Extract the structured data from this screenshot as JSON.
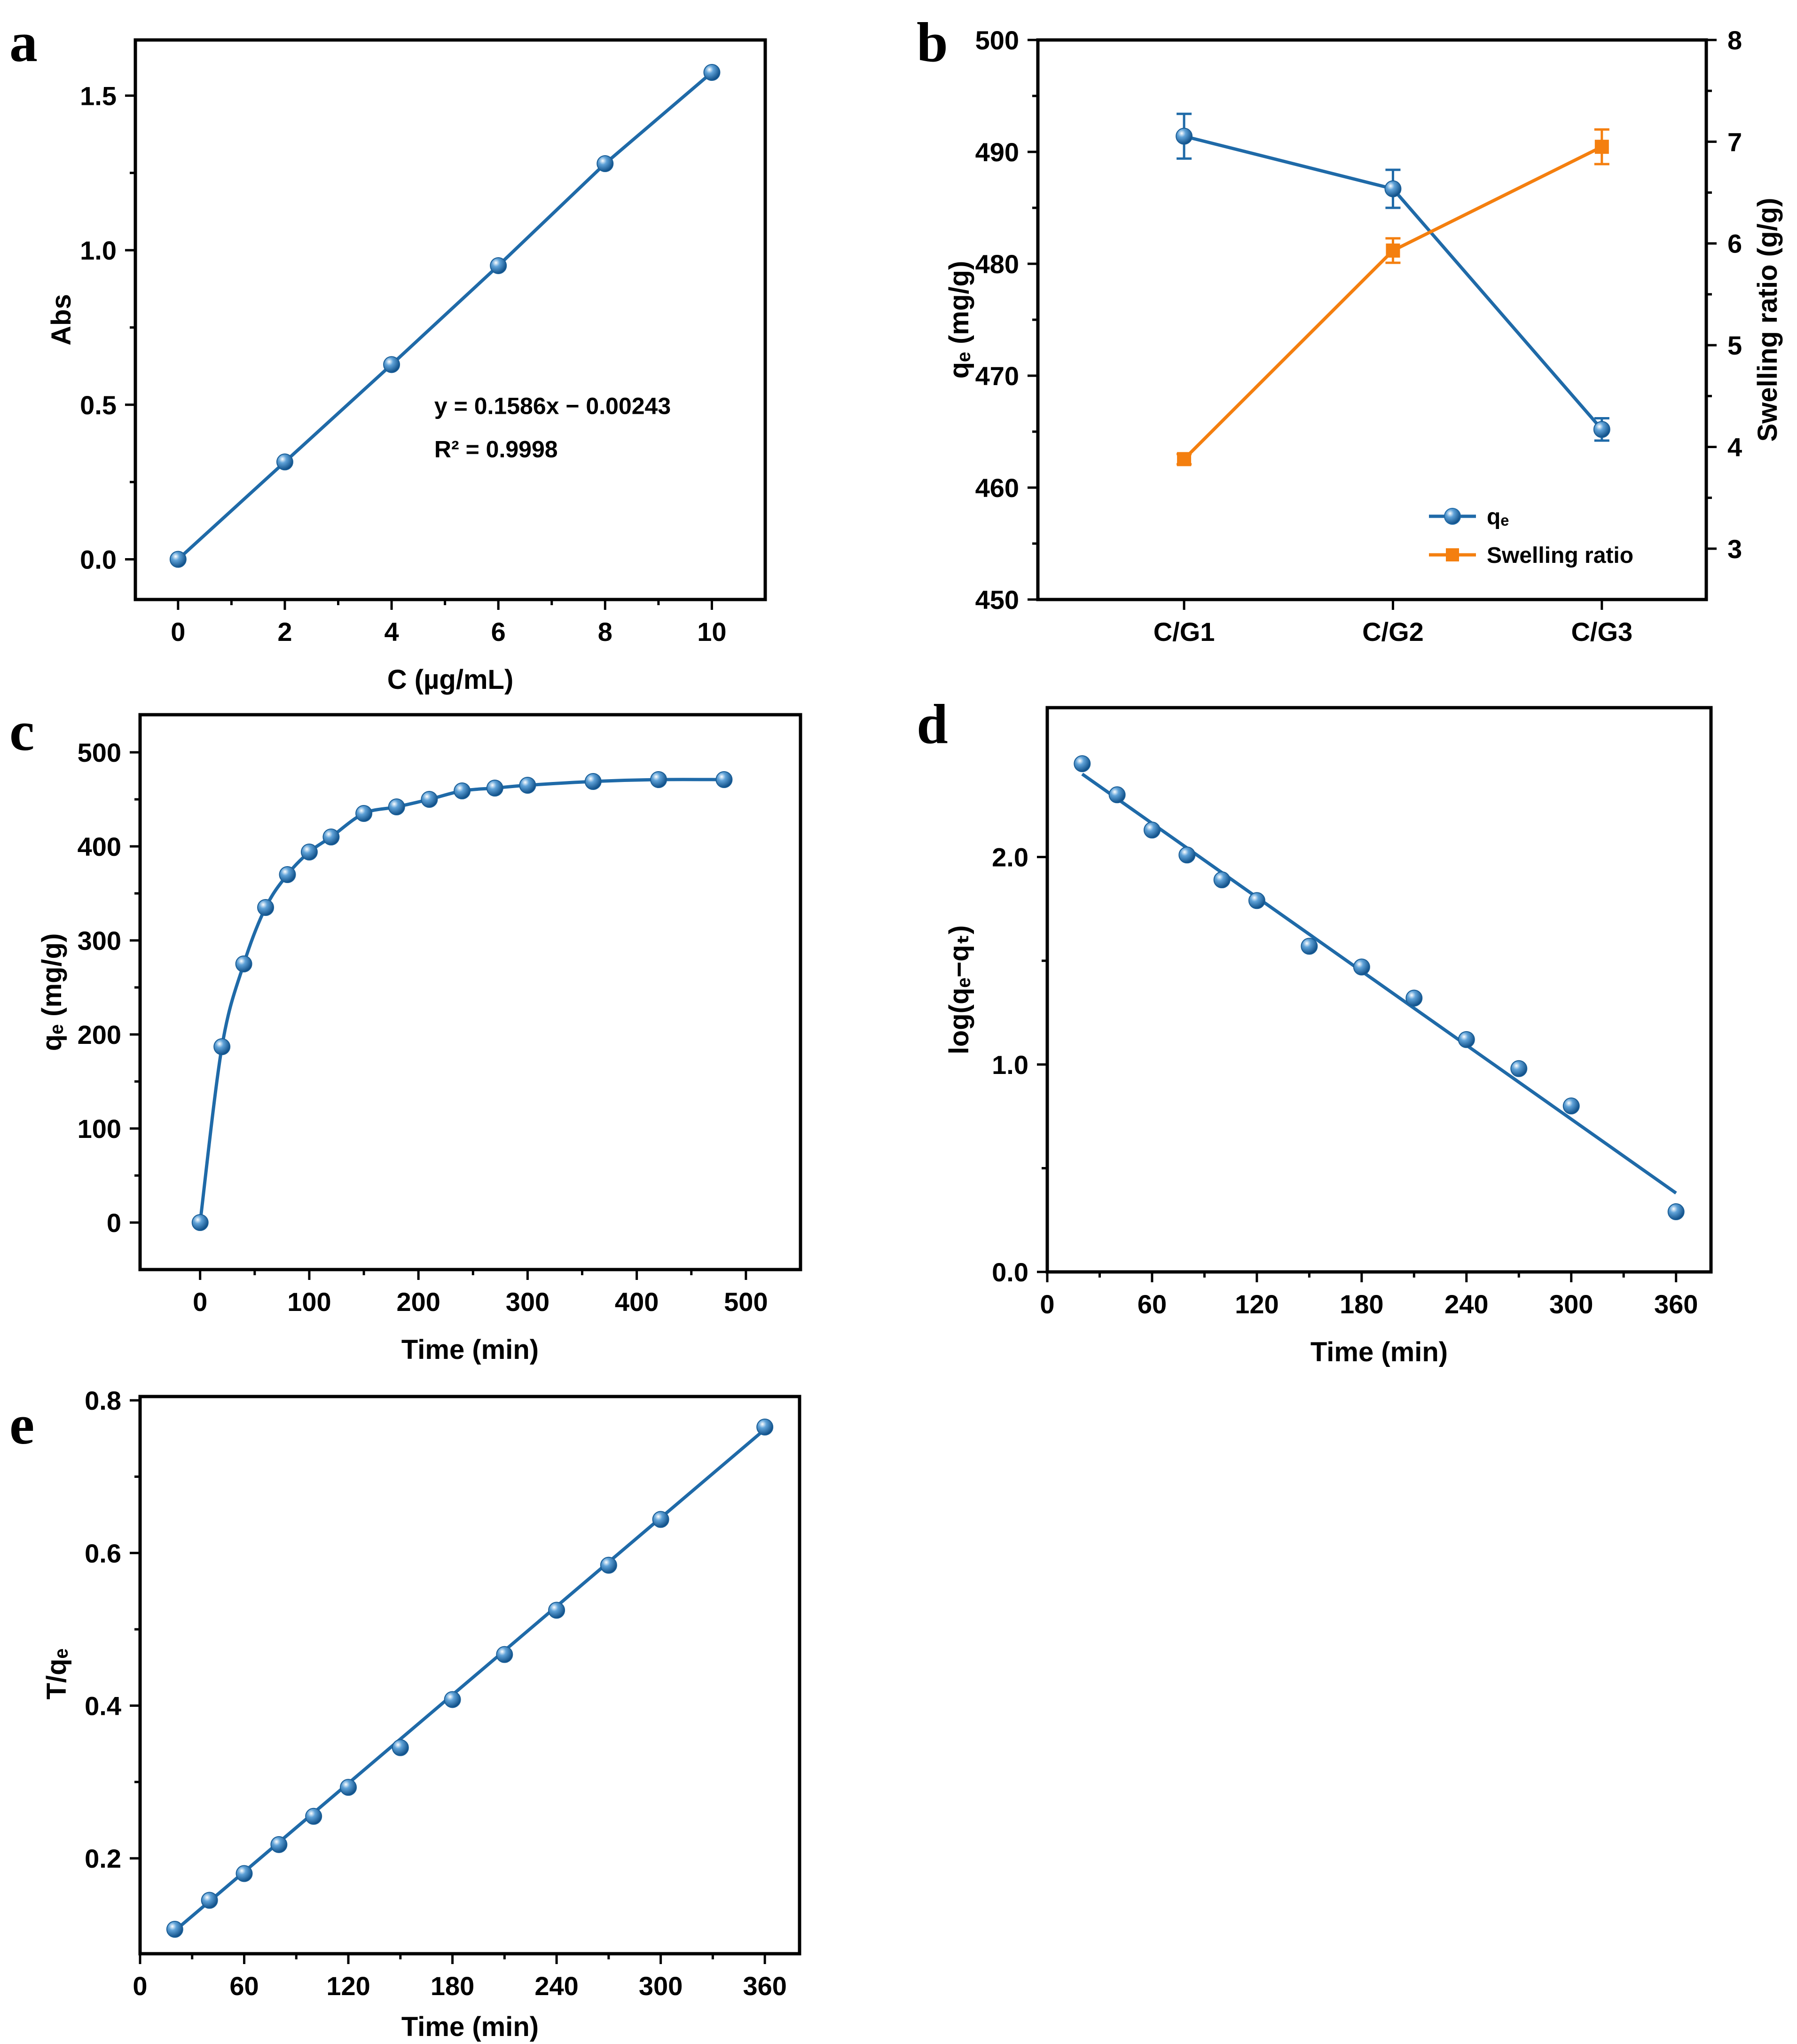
{
  "colors": {
    "blue": "#1f6aa8",
    "orange": "#f47f0f",
    "axis": "#000000"
  },
  "marker": "sphere-icon",
  "chart_data": [
    {
      "panel": "a",
      "type": "line",
      "xlabel": "C (µg/mL)",
      "ylabel": "Abs",
      "xlim": [
        -0.8,
        11.0
      ],
      "ylim": [
        -0.13,
        1.68
      ],
      "xticks": [
        0,
        2,
        4,
        6,
        8,
        10
      ],
      "xtick_labels": [
        "0",
        "2",
        "4",
        "6",
        "8",
        "10"
      ],
      "yticks": [
        0.0,
        0.5,
        1.0,
        1.5
      ],
      "ytick_labels": [
        "0.0",
        "0.5",
        "1.0",
        "1.5"
      ],
      "series": [
        {
          "x": [
            0,
            2,
            4,
            6,
            8,
            10
          ],
          "y": [
            0.0,
            0.315,
            0.63,
            0.95,
            1.28,
            1.575
          ],
          "line": "connect"
        }
      ],
      "annotations": [
        {
          "text": "y = 0.1586x − 0.00243",
          "x": 4.8,
          "y": 0.47
        },
        {
          "text": "R² = 0.9998",
          "x": 4.8,
          "y": 0.33
        }
      ]
    },
    {
      "panel": "b",
      "type": "line",
      "categories": [
        "C/G1",
        "C/G2",
        "C/G3"
      ],
      "xlim": [
        -0.7,
        2.5
      ],
      "ylabel": "qₑ (mg/g)",
      "ylim": [
        450,
        500
      ],
      "yticks": [
        450,
        460,
        470,
        480,
        490,
        500
      ],
      "ytick_labels": [
        "450",
        "460",
        "470",
        "480",
        "490",
        "500"
      ],
      "y2label": "Swelling ratio (g/g)",
      "y2lim": [
        2.5,
        8
      ],
      "y2ticks": [
        3,
        4,
        5,
        6,
        7,
        8
      ],
      "y2tick_labels": [
        "3",
        "4",
        "5",
        "6",
        "7",
        "8"
      ],
      "legend_position": "bottom-right",
      "series": [
        {
          "name": "qₑ",
          "axis": "left",
          "color": "#1f6aa8",
          "marker": "circle",
          "values": [
            491.4,
            486.7,
            465.2
          ],
          "errors": [
            2.0,
            1.7,
            1.0
          ]
        },
        {
          "name": "Swelling ratio",
          "axis": "right",
          "color": "#f47f0f",
          "marker": "square",
          "values": [
            3.88,
            5.93,
            6.95
          ],
          "errors": [
            0.05,
            0.12,
            0.17
          ]
        }
      ]
    },
    {
      "panel": "c",
      "type": "line",
      "xlabel": "Time (min)",
      "ylabel": "qₑ (mg/g)",
      "xlim": [
        -55,
        550
      ],
      "ylim": [
        -50,
        540
      ],
      "xticks": [
        0,
        100,
        200,
        300,
        400,
        500
      ],
      "xtick_labels": [
        "0",
        "100",
        "200",
        "300",
        "400",
        "500"
      ],
      "yticks": [
        0,
        100,
        200,
        300,
        400,
        500
      ],
      "ytick_labels": [
        "0",
        "100",
        "200",
        "300",
        "400",
        "500"
      ],
      "series": [
        {
          "x": [
            0,
            20,
            40,
            60,
            80,
            100,
            120,
            150,
            180,
            210,
            240,
            270,
            300,
            360,
            420,
            480
          ],
          "y": [
            0,
            187,
            275,
            335,
            370,
            394,
            410,
            435,
            442,
            450,
            459,
            462,
            465,
            469,
            471,
            471
          ],
          "line": "smooth"
        }
      ]
    },
    {
      "panel": "d",
      "type": "scatter",
      "xlabel": "Time (min)",
      "ylabel": "log(qₑ−qₜ)",
      "xlim": [
        0,
        380
      ],
      "ylim": [
        0,
        2.72
      ],
      "xticks": [
        0,
        60,
        120,
        180,
        240,
        300,
        360
      ],
      "xtick_labels": [
        "0",
        "60",
        "120",
        "180",
        "240",
        "300",
        "360"
      ],
      "yticks": [
        0.0,
        1.0,
        2.0
      ],
      "ytick_labels": [
        "0.0",
        "1.0",
        "2.0"
      ],
      "series": [
        {
          "x": [
            20,
            40,
            60,
            80,
            100,
            120,
            150,
            180,
            210,
            240,
            270,
            300,
            360
          ],
          "y": [
            2.45,
            2.3,
            2.13,
            2.01,
            1.89,
            1.79,
            1.57,
            1.47,
            1.32,
            1.12,
            0.98,
            0.8,
            0.29
          ]
        }
      ],
      "fit_line": {
        "x": [
          20,
          360
        ],
        "y": [
          2.4,
          0.38
        ]
      }
    },
    {
      "panel": "e",
      "type": "scatter",
      "xlabel": "Time (min)",
      "ylabel": "T/qₑ",
      "xlim": [
        0,
        380
      ],
      "ylim": [
        0.075,
        0.805
      ],
      "xticks": [
        0,
        60,
        120,
        180,
        240,
        300,
        360
      ],
      "xtick_labels": [
        "0",
        "60",
        "120",
        "180",
        "240",
        "300",
        "360"
      ],
      "yticks": [
        0.2,
        0.4,
        0.6,
        0.8
      ],
      "ytick_labels": [
        "0.2",
        "0.4",
        "0.6",
        "0.8"
      ],
      "series": [
        {
          "x": [
            20,
            40,
            60,
            80,
            100,
            120,
            150,
            180,
            210,
            240,
            270,
            300,
            360
          ],
          "y": [
            0.107,
            0.145,
            0.18,
            0.218,
            0.255,
            0.293,
            0.345,
            0.408,
            0.467,
            0.525,
            0.584,
            0.644,
            0.765
          ]
        }
      ],
      "fit_line": {
        "x": [
          20,
          360
        ],
        "y": [
          0.105,
          0.762
        ]
      }
    }
  ]
}
